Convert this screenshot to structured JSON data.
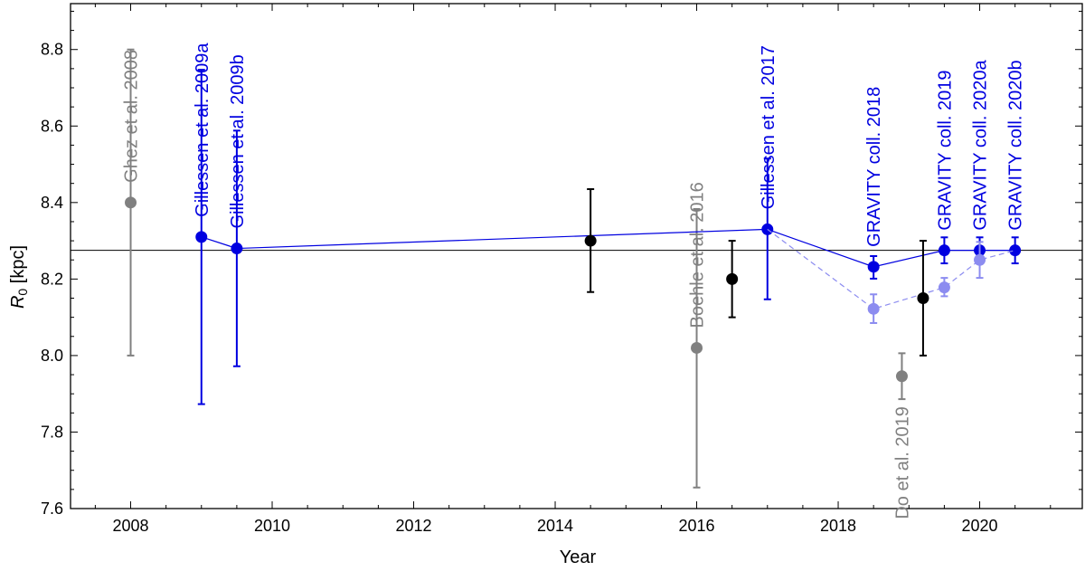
{
  "chart_data": {
    "type": "scatter",
    "title": "",
    "xlabel": "Year",
    "ylabel_main": "R",
    "ylabel_sub": "0",
    "ylabel_rest": " [kpc]",
    "xlim": [
      2007.15,
      2021.45
    ],
    "ylim": [
      7.6,
      8.92
    ],
    "xticks": [
      2008,
      2010,
      2012,
      2014,
      2016,
      2018,
      2020
    ],
    "yticks": [
      7.6,
      7.8,
      8.0,
      8.2,
      8.4,
      8.6,
      8.8
    ],
    "xtick_labels": [
      "2008",
      "2010",
      "2012",
      "2014",
      "2016",
      "2018",
      "2020"
    ],
    "ytick_labels": [
      "7.6",
      "7.8",
      "8.0",
      "8.2",
      "8.4",
      "8.6",
      "8.8"
    ],
    "reference_line": {
      "y": 8.275,
      "color": "#000000"
    },
    "colors": {
      "gray": "#808080",
      "blue": "#0000e0",
      "lightblue": "#8c8cf0",
      "black": "#000000"
    },
    "series": [
      {
        "group": "gray",
        "points": [
          {
            "x": 2008.0,
            "y": 8.4,
            "lo": 8.0,
            "hi": 8.8,
            "label": "Ghez et al. 2008",
            "label_pos": "above"
          },
          {
            "x": 2016.0,
            "y": 8.02,
            "lo": 7.655,
            "hi": 8.383,
            "label": "Boehle et al. 2016",
            "label_pos": "above"
          },
          {
            "x": 2018.9,
            "y": 7.946,
            "lo": 7.886,
            "hi": 8.006,
            "label": "Do et al. 2019",
            "label_pos": "below"
          }
        ]
      },
      {
        "group": "blue",
        "connected": true,
        "points": [
          {
            "x": 2009.0,
            "y": 8.31,
            "lo": 7.873,
            "hi": 8.747,
            "label": "Gillessen et al. 2009a",
            "label_pos": "above"
          },
          {
            "x": 2009.5,
            "y": 8.28,
            "lo": 7.972,
            "hi": 8.588,
            "label": "Gillessen et al. 2009b",
            "label_pos": "above"
          },
          {
            "x": 2017.0,
            "y": 8.33,
            "lo": 8.147,
            "hi": 8.515,
            "label": "Gillessen et al. 2017",
            "label_pos": "above"
          },
          {
            "x": 2018.5,
            "y": 8.232,
            "lo": 8.201,
            "hi": 8.26,
            "label": "GRAVITY coll. 2018",
            "label_pos": "above"
          },
          {
            "x": 2019.5,
            "y": 8.275,
            "lo": 8.241,
            "hi": 8.309,
            "label": "GRAVITY coll. 2019",
            "label_pos": "above"
          },
          {
            "x": 2020.0,
            "y": 8.275,
            "lo": 8.241,
            "hi": 8.309,
            "label": "GRAVITY coll. 2020a",
            "label_pos": "above"
          },
          {
            "x": 2020.5,
            "y": 8.275,
            "lo": 8.241,
            "hi": 8.309,
            "label": "GRAVITY coll. 2020b",
            "label_pos": "above"
          }
        ]
      },
      {
        "group": "lightblue",
        "connected": true,
        "dashed": true,
        "points": [
          {
            "x": 2017.0,
            "y": 8.33,
            "marker": false
          },
          {
            "x": 2018.5,
            "y": 8.122,
            "lo": 8.085,
            "hi": 8.16
          },
          {
            "x": 2019.5,
            "y": 8.178,
            "lo": 8.155,
            "hi": 8.203
          },
          {
            "x": 2020.0,
            "y": 8.25,
            "lo": 8.203,
            "hi": 8.297
          },
          {
            "x": 2020.5,
            "y": 8.275,
            "marker": false
          }
        ]
      },
      {
        "group": "black",
        "points": [
          {
            "x": 2014.5,
            "y": 8.3,
            "lo": 8.166,
            "hi": 8.435
          },
          {
            "x": 2016.5,
            "y": 8.2,
            "lo": 8.1,
            "hi": 8.3
          },
          {
            "x": 2019.2,
            "y": 8.15,
            "lo": 8.0,
            "hi": 8.3
          }
        ]
      }
    ]
  }
}
